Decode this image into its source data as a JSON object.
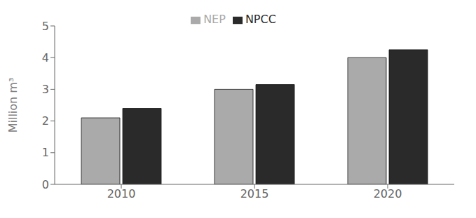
{
  "chart_data": {
    "type": "bar",
    "categories": [
      "2010",
      "2015",
      "2020"
    ],
    "series": [
      {
        "name": "NEP",
        "color": "#aaaaaa",
        "values": [
          2.1,
          3.0,
          4.0
        ]
      },
      {
        "name": "NPCC",
        "color": "#2a2a2a",
        "values": [
          2.4,
          3.15,
          4.25
        ]
      }
    ],
    "ylabel": "Million m³",
    "ylim": [
      0,
      5
    ],
    "yticks": [
      0,
      1,
      2,
      3,
      4,
      5
    ],
    "legend": "top",
    "grid": false
  }
}
